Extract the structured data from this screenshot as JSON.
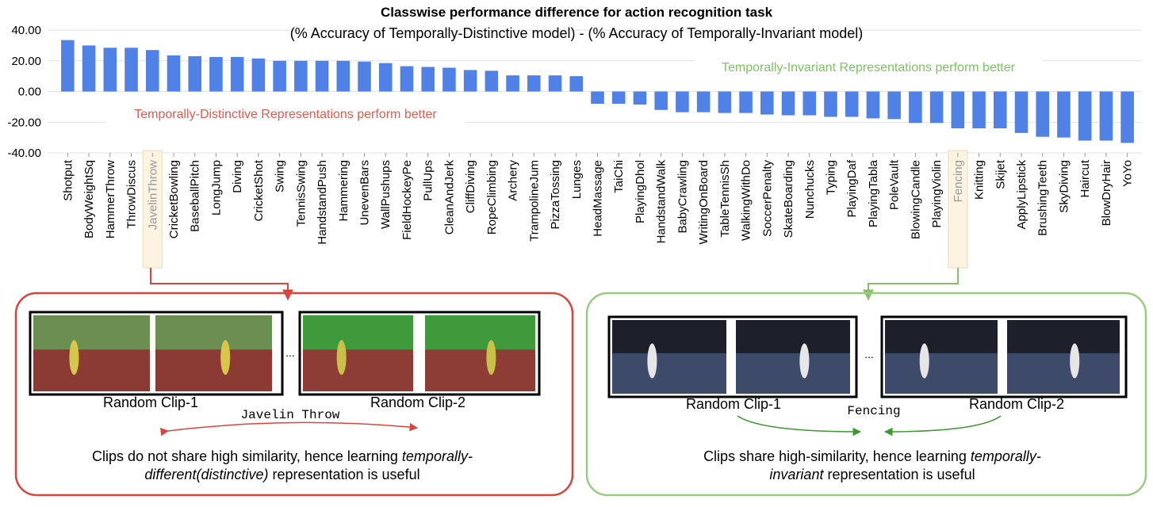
{
  "chart_data": {
    "type": "bar",
    "title": "Classwise performance difference for action recognition task",
    "subtitle": "(% Accuracy of Temporally-Distinctive model) - (% Accuracy of Temporally-Invariant model)",
    "annotations": [
      "Temporally-Distinctive Representations perform better",
      "Temporally-Invariant Representations perform better"
    ],
    "categories": [
      "Shotput",
      "BodyWeightSq",
      "HammerThrow",
      "ThrowDiscus",
      "JavelinThrow",
      "CricketBowling",
      "BaseballPitch",
      "LongJump",
      "Diving",
      "CricketShot",
      "Swing",
      "TennisSwing",
      "HandstandPush",
      "Hammering",
      "UnevenBars",
      "WallPushups",
      "FieldHockeyPe",
      "PullUps",
      "CleanAndJerk",
      "CliffDiving",
      "RopeClimbing",
      "Archery",
      "TrampolineJum",
      "PizzaTossing",
      "Lunges",
      "HeadMassage",
      "TaiChi",
      "PlayingDhol",
      "HandstandWalk",
      "BabyCrawling",
      "WritingOnBoard",
      "TableTennisSh",
      "WalkingWithDo",
      "SoccerPenalty",
      "SkateBoarding",
      "Nunchucks",
      "Typing",
      "PlayingDaf",
      "PlayingTabla",
      "PoleVault",
      "BlowingCandle",
      "PlayingViolin",
      "Fencing",
      "Knitting",
      "Skijet",
      "ApplyLipstick",
      "BrushingTeeth",
      "SkyDiving",
      "Haircut",
      "BlowDryHair",
      "YoYo"
    ],
    "values": [
      33.5,
      30,
      28.5,
      28.5,
      27,
      23.5,
      23,
      22.5,
      22.5,
      21.5,
      20,
      20,
      20,
      20,
      19.5,
      18.5,
      16.5,
      16,
      15.5,
      14,
      13.5,
      10.5,
      10.5,
      10.5,
      10,
      -8,
      -8,
      -8.5,
      -12,
      -13.5,
      -13.5,
      -14,
      -14,
      -15,
      -15.5,
      -15.5,
      -16.5,
      -16.5,
      -17.5,
      -18,
      -20.5,
      -20.5,
      -24,
      -24,
      -24,
      -27,
      -29.5,
      -30,
      -32,
      -32,
      -33.5
    ],
    "color": "#4f81e6",
    "ylim": [
      -40,
      40
    ],
    "yticks": [
      {
        "value": -40,
        "label": "-40.00"
      },
      {
        "value": -20,
        "label": "-20.00"
      },
      {
        "value": 0,
        "label": "0.00"
      },
      {
        "value": 20,
        "label": "20.00"
      },
      {
        "value": 40,
        "label": "40.00"
      }
    ],
    "grid": true
  },
  "panels": [
    {
      "clip1": "Random Clip-1",
      "clip2": "Random Clip-2",
      "ellipsis": "...",
      "action": "Javelin Throw",
      "line1": [
        "Clips do not share high similarity, hence learning ",
        "temporally-"
      ],
      "line2": [
        "different(distinctive)",
        " representation is useful"
      ]
    },
    {
      "clip1": "Random Clip-1",
      "clip2": "Random Clip-2",
      "ellipsis": "...",
      "action": "Fencing",
      "line1": [
        "Clips share high-similarity, hence learning ",
        "temporally-"
      ],
      "line2": [
        "invariant",
        " representation is useful"
      ]
    }
  ]
}
